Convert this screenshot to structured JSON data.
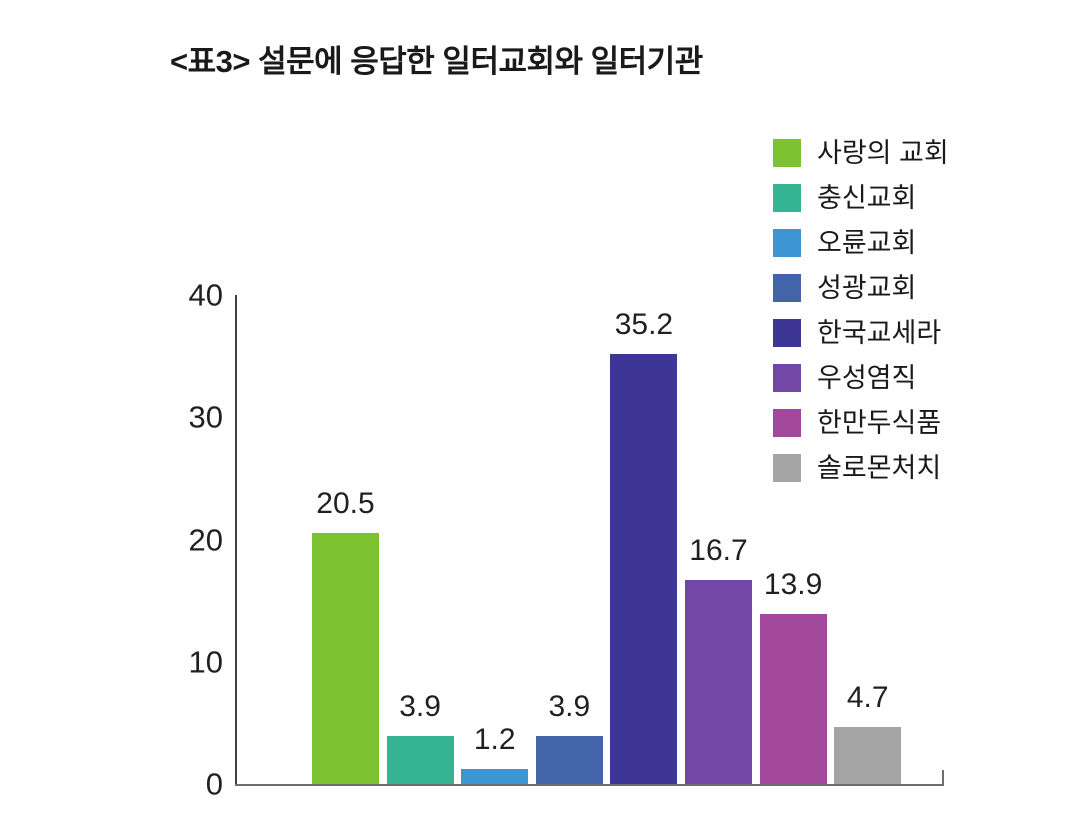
{
  "title": "<표3> 설문에 응답한 일터교회와 일터기관",
  "chart_data": {
    "type": "bar",
    "title": "<표3> 설문에 응답한 일터교회와 일터기관",
    "categories": [
      "사랑의 교회",
      "충신교회",
      "오륜교회",
      "성광교회",
      "한국교세라",
      "우성염직",
      "한만두식품",
      "솔로몬처치"
    ],
    "values": [
      20.5,
      3.9,
      1.2,
      3.9,
      35.2,
      16.7,
      13.9,
      4.7
    ],
    "value_labels": [
      "20.5",
      "3.9",
      "1.2",
      "3.9",
      "35.2",
      "16.7",
      "13.9",
      "4.7"
    ],
    "colors": [
      "#7dc230",
      "#35b494",
      "#3d96d2",
      "#4464aa",
      "#3e3695",
      "#7247a6",
      "#a1479c",
      "#a5a5a5"
    ],
    "xlabel": "",
    "ylabel": "",
    "ylim": [
      0,
      40
    ],
    "yticks": [
      0,
      10,
      20,
      30,
      40
    ],
    "ytick_labels": [
      "0",
      "10",
      "20",
      "30",
      "40"
    ],
    "grid": false,
    "legend_position": "upper right",
    "bar_label_position": "above"
  },
  "style": {
    "background_color": "#ffffff",
    "axis_color_left": "#3f3f3f",
    "axis_color_bottom": "#6d6e71",
    "text_color": "#231f20"
  }
}
